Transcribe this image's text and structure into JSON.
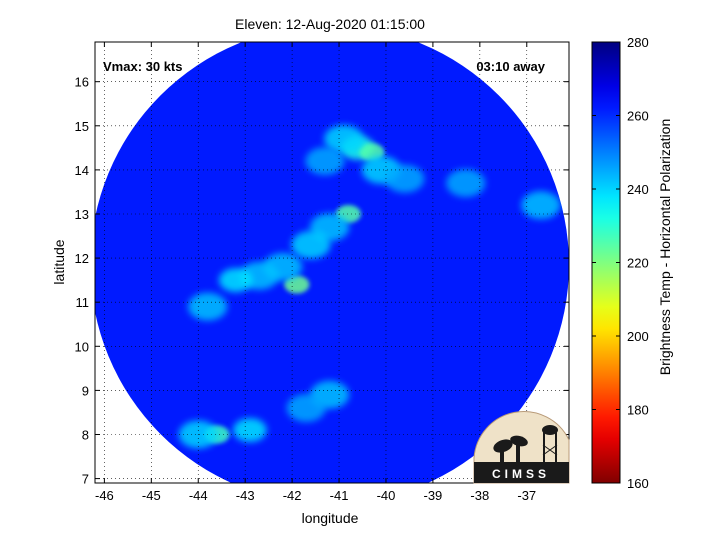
{
  "chart_data": {
    "type": "heatmap",
    "title": "Eleven: 12-Aug-2020 01:15:00",
    "xlabel": "longitude",
    "ylabel": "latitude",
    "xlim": [
      -46.2,
      -36.1
    ],
    "ylim": [
      6.9,
      16.9
    ],
    "x_ticks": [
      -46,
      -45,
      -44,
      -43,
      -42,
      -41,
      -40,
      -39,
      -38,
      -37
    ],
    "y_ticks": [
      7,
      8,
      9,
      10,
      11,
      12,
      13,
      14,
      15,
      16
    ],
    "grid": true,
    "annotations": {
      "vmax": "Vmax: 30 kts",
      "away": "03:10 away"
    },
    "colorbar": {
      "label": "Brightness Temp - Horizontal Polarization",
      "ticks": [
        160,
        180,
        200,
        220,
        240,
        260,
        280
      ],
      "range": [
        160,
        280
      ],
      "colormap": "jet"
    },
    "swath": {
      "center_lon": -41.2,
      "center_lat": 11.85,
      "radius_deg": 5.1
    },
    "background_value": 262,
    "features": [
      {
        "lon": -40.6,
        "lat": 14.5,
        "value": 232
      },
      {
        "lon": -40.3,
        "lat": 14.4,
        "value": 225
      },
      {
        "lon": -40.9,
        "lat": 14.7,
        "value": 240
      },
      {
        "lon": -40.1,
        "lat": 14.0,
        "value": 240
      },
      {
        "lon": -41.3,
        "lat": 14.2,
        "value": 245
      },
      {
        "lon": -40.8,
        "lat": 13.0,
        "value": 225
      },
      {
        "lon": -41.2,
        "lat": 12.7,
        "value": 242
      },
      {
        "lon": -41.6,
        "lat": 12.3,
        "value": 240
      },
      {
        "lon": -41.9,
        "lat": 11.4,
        "value": 222
      },
      {
        "lon": -42.2,
        "lat": 11.8,
        "value": 242
      },
      {
        "lon": -42.7,
        "lat": 11.6,
        "value": 242
      },
      {
        "lon": -43.2,
        "lat": 11.5,
        "value": 238
      },
      {
        "lon": -43.8,
        "lat": 10.9,
        "value": 242
      },
      {
        "lon": -43.6,
        "lat": 8.0,
        "value": 228
      },
      {
        "lon": -44.0,
        "lat": 8.0,
        "value": 240
      },
      {
        "lon": -42.9,
        "lat": 8.1,
        "value": 238
      },
      {
        "lon": -41.2,
        "lat": 8.9,
        "value": 242
      },
      {
        "lon": -41.7,
        "lat": 8.6,
        "value": 245
      },
      {
        "lon": -39.6,
        "lat": 13.8,
        "value": 245
      },
      {
        "lon": -38.3,
        "lat": 13.7,
        "value": 245
      },
      {
        "lon": -36.7,
        "lat": 13.2,
        "value": 242
      }
    ]
  },
  "logo": {
    "text": "CIMSS"
  },
  "colors": {
    "axes": "#000000",
    "background": "#ffffff"
  }
}
